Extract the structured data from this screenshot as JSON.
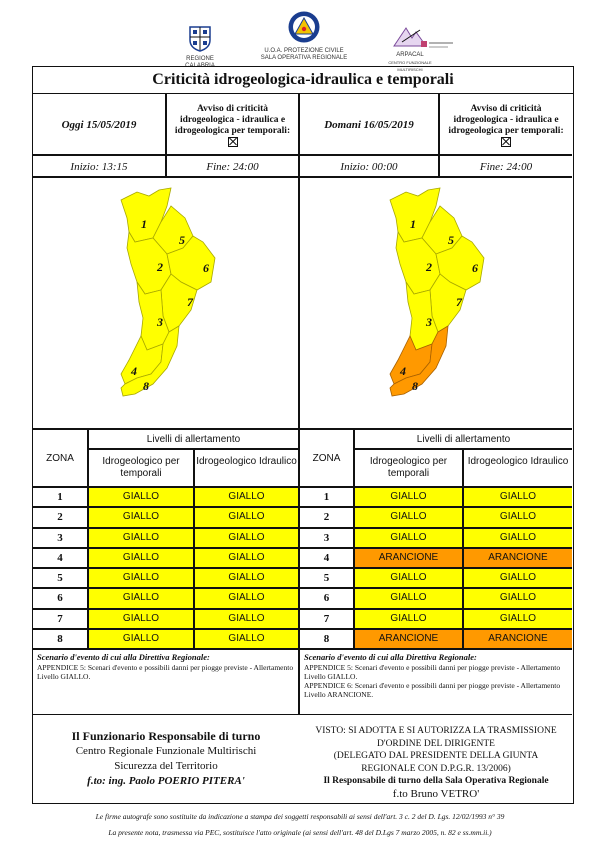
{
  "logos": {
    "left_caption": "REGIONE CALABRIA",
    "center_caption_1": "U.O.A. PROTEZIONE CIVILE",
    "center_caption_2": "SALA OPERATIVA REGIONALE",
    "right_caption_1": "ARPACAL",
    "right_caption_2": "CENTRO FUNZIONALE MULTIRISCHI"
  },
  "title": "Criticità idrogeologica-idraulica e temporali",
  "today": {
    "date_label": "Oggi 15/05/2019",
    "avviso_text": "Avviso di criticità idrogeologica - idraulica e idrogeologica per temporali:",
    "inizio": "Inizio: 13:15",
    "fine": "Fine: 24:00"
  },
  "tomorrow": {
    "date_label": "Domani 16/05/2019",
    "avviso_text": "Avviso di criticità idrogeologica - idraulica e idrogeologica per temporali:",
    "inizio": "Inizio: 00:00",
    "fine": "Fine: 24:00"
  },
  "map_zone_labels": [
    "1",
    "2",
    "3",
    "4",
    "5",
    "6",
    "7",
    "8"
  ],
  "table": {
    "zona_header": "ZONA",
    "livelli_header": "Livelli di allertamento",
    "col1_header": "Idrogeologico per temporali",
    "col2_header": "Idrogeologico Idraulico"
  },
  "today_rows": [
    {
      "zona": "1",
      "a": "GIALLO",
      "b": "GIALLO",
      "a_color": "#ffff00",
      "b_color": "#ffff00"
    },
    {
      "zona": "2",
      "a": "GIALLO",
      "b": "GIALLO",
      "a_color": "#ffff00",
      "b_color": "#ffff00"
    },
    {
      "zona": "3",
      "a": "GIALLO",
      "b": "GIALLO",
      "a_color": "#ffff00",
      "b_color": "#ffff00"
    },
    {
      "zona": "4",
      "a": "GIALLO",
      "b": "GIALLO",
      "a_color": "#ffff00",
      "b_color": "#ffff00"
    },
    {
      "zona": "5",
      "a": "GIALLO",
      "b": "GIALLO",
      "a_color": "#ffff00",
      "b_color": "#ffff00"
    },
    {
      "zona": "6",
      "a": "GIALLO",
      "b": "GIALLO",
      "a_color": "#ffff00",
      "b_color": "#ffff00"
    },
    {
      "zona": "7",
      "a": "GIALLO",
      "b": "GIALLO",
      "a_color": "#ffff00",
      "b_color": "#ffff00"
    },
    {
      "zona": "8",
      "a": "GIALLO",
      "b": "GIALLO",
      "a_color": "#ffff00",
      "b_color": "#ffff00"
    }
  ],
  "tomorrow_rows": [
    {
      "zona": "1",
      "a": "GIALLO",
      "b": "GIALLO",
      "a_color": "#ffff00",
      "b_color": "#ffff00"
    },
    {
      "zona": "2",
      "a": "GIALLO",
      "b": "GIALLO",
      "a_color": "#ffff00",
      "b_color": "#ffff00"
    },
    {
      "zona": "3",
      "a": "GIALLO",
      "b": "GIALLO",
      "a_color": "#ffff00",
      "b_color": "#ffff00"
    },
    {
      "zona": "4",
      "a": "ARANCIONE",
      "b": "ARANCIONE",
      "a_color": "#ff9900",
      "b_color": "#ff9900"
    },
    {
      "zona": "5",
      "a": "GIALLO",
      "b": "GIALLO",
      "a_color": "#ffff00",
      "b_color": "#ffff00"
    },
    {
      "zona": "6",
      "a": "GIALLO",
      "b": "GIALLO",
      "a_color": "#ffff00",
      "b_color": "#ffff00"
    },
    {
      "zona": "7",
      "a": "GIALLO",
      "b": "GIALLO",
      "a_color": "#ffff00",
      "b_color": "#ffff00"
    },
    {
      "zona": "8",
      "a": "ARANCIONE",
      "b": "ARANCIONE",
      "a_color": "#ff9900",
      "b_color": "#ff9900"
    }
  ],
  "scenario": {
    "heading": "Scenario d'evento di cui alla Direttiva Regionale:",
    "today_lines": [
      "APPENDICE 5: Scenari d'evento e possibili danni per piogge previste - Allertamento Livello GIALLO."
    ],
    "tomorrow_lines": [
      "APPENDICE 5: Scenari d'evento e possibili danni per piogge previste - Allertamento Livello GIALLO.",
      "APPENDICE 6: Scenari d'evento e possibili danni per piogge previste - Allertamento Livello ARANCIONE."
    ]
  },
  "signature_left": {
    "line1": "Il Funzionario Responsabile di turno",
    "line2": "Centro Regionale Funzionale Multirischi",
    "line3": "Sicurezza del Territorio",
    "line4": "f.to: ing. Paolo POERIO PITERA'"
  },
  "signature_right": {
    "line1": "VISTO: SI ADOTTA E SI AUTORIZZA LA TRASMISSIONE",
    "line2": "D'ORDINE DEL DIRIGENTE",
    "line3": "(DELEGATO DAL PRESIDENTE DELLA GIUNTA",
    "line4": "REGIONALE CON D.P.G.R. 13/2006)",
    "line5": "Il Responsabile di turno della Sala Operativa Regionale",
    "line6": "f.to Bruno VETRO'"
  },
  "footer": {
    "line1": "Le firme autografe sono sostituite da indicazione a stampa dei soggetti responsabili ai sensi dell'art. 3 c. 2 del D. Lgs. 12/02/1993 n° 39",
    "line2": "La presente nota, trasmessa via PEC, sostituisce l'atto originale (ai sensi dell'art. 48 del D.Lgs 7 marzo 2005, n. 82 e ss.mm.ii.)"
  },
  "colors": {
    "yellow": "#ffff00",
    "orange": "#ff9900"
  }
}
